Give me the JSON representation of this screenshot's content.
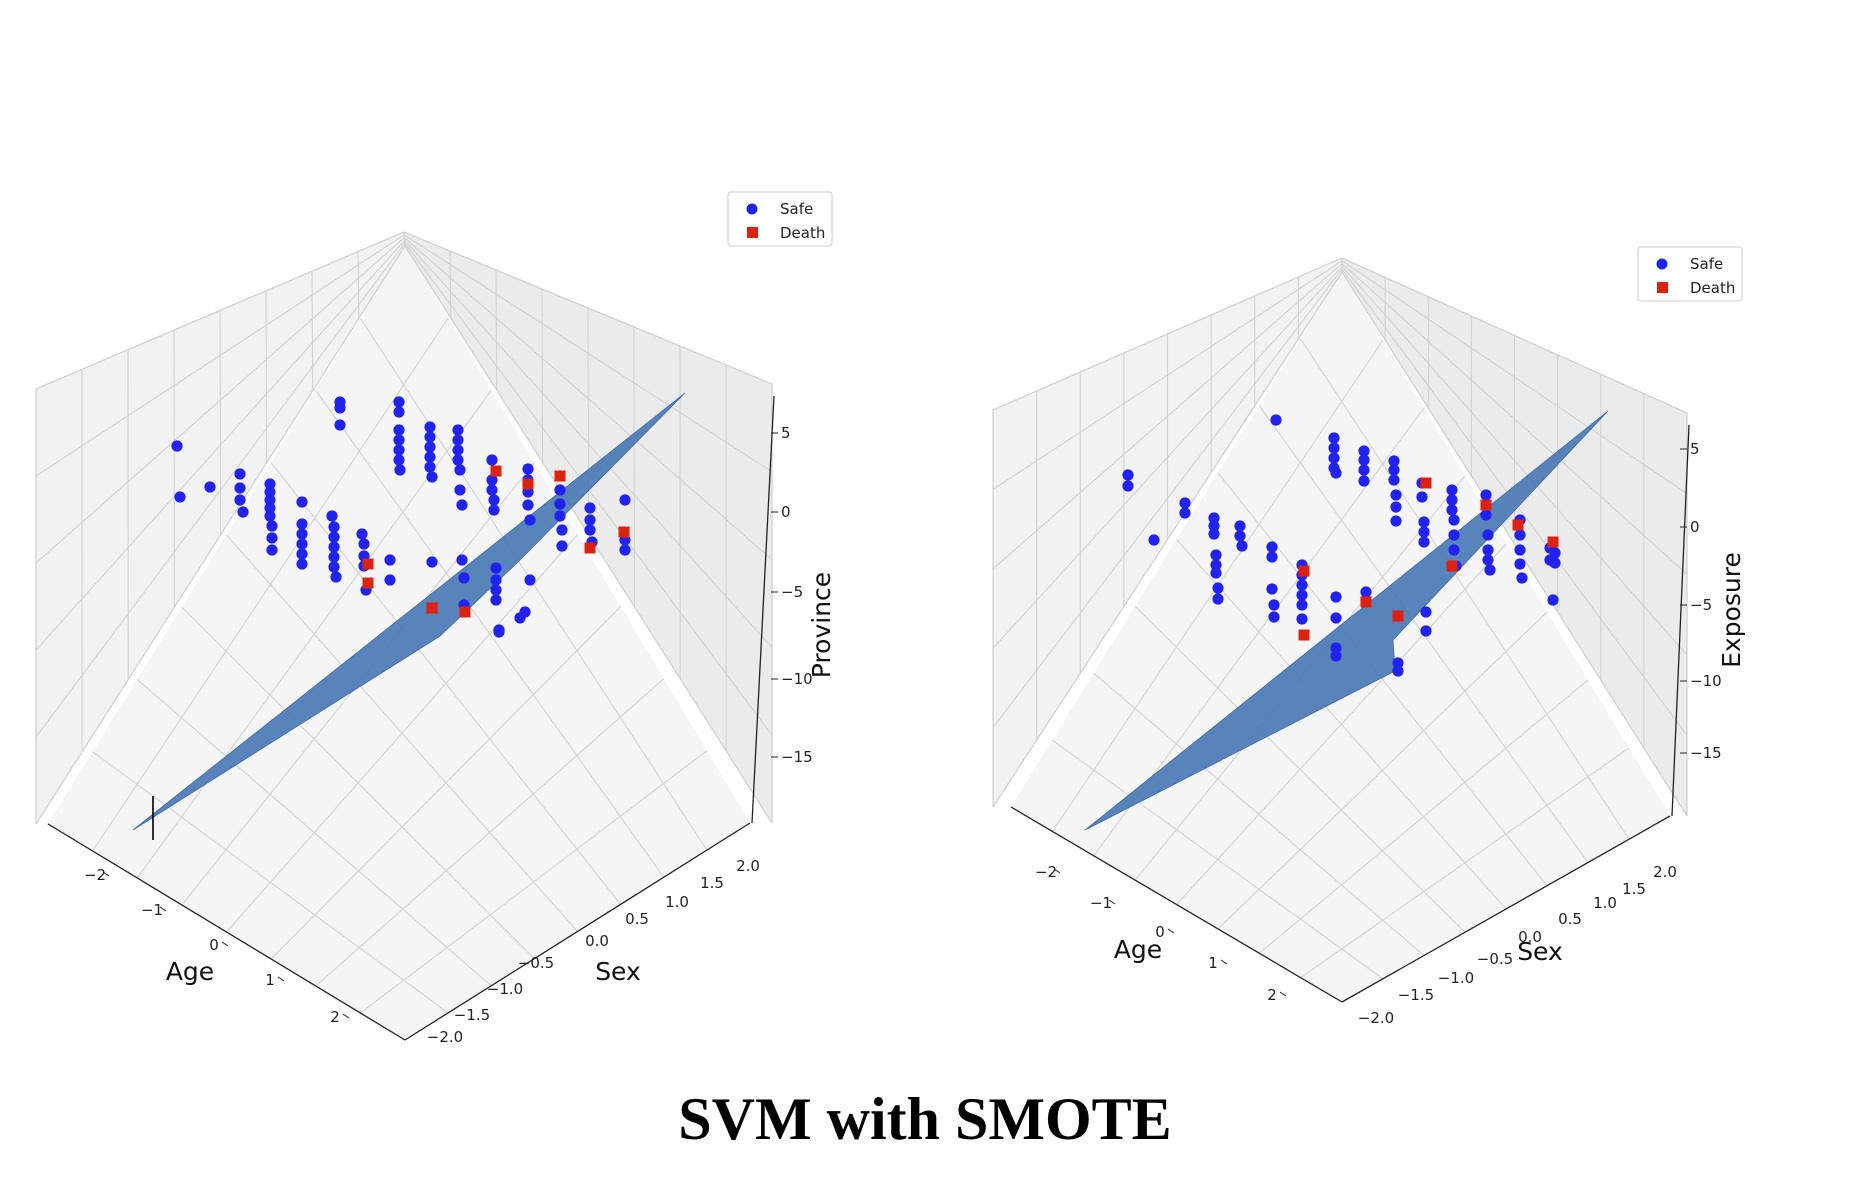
{
  "title": "SVM with SMOTE",
  "colors": {
    "safe": "#2222ee",
    "death": "#dd2211",
    "plane": "#4a7ab5",
    "pane": "#f2f2f2"
  },
  "chart_data": [
    {
      "type": "scatter3d",
      "xlabel": "Age",
      "ylabel": "Sex",
      "zlabel": "Province",
      "xticks": [
        "−2",
        "−1",
        "0",
        "1",
        "2"
      ],
      "yticks": [
        "−2.0",
        "−1.5",
        "−1.0",
        "−0.5",
        "0.0",
        "0.5",
        "1.0",
        "1.5",
        "2.0"
      ],
      "zticks": [
        "5",
        "0",
        "−5",
        "−10",
        "−15"
      ],
      "legend": [
        "Safe",
        "Death"
      ],
      "legend_position": "top-right",
      "grid": true
    },
    {
      "type": "scatter3d",
      "xlabel": "Age",
      "ylabel": "Sex",
      "zlabel": "Exposure",
      "xticks": [
        "−2",
        "−1",
        "0",
        "1",
        "2"
      ],
      "yticks": [
        "−2.0",
        "−1.5",
        "−1.0",
        "−0.5",
        "0.0",
        "0.5",
        "1.0",
        "1.5",
        "2.0"
      ],
      "zticks": [
        "5",
        "0",
        "−5",
        "−10",
        "−15"
      ],
      "legend": [
        "Safe",
        "Death"
      ],
      "legend_position": "top-right",
      "grid": true
    }
  ]
}
